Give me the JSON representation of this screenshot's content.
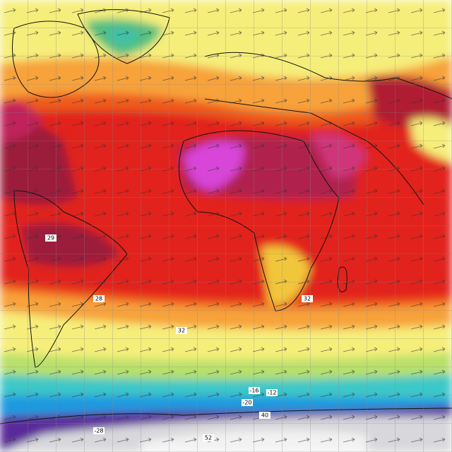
{
  "map": {
    "labels": [
      {
        "text": "32"
      },
      {
        "text": "28"
      },
      {
        "text": "29"
      },
      {
        "text": "-20"
      },
      {
        "text": "40"
      },
      {
        "text": "52"
      },
      {
        "text": "-28"
      },
      {
        "text": "32"
      },
      {
        "text": "-16"
      },
      {
        "text": "-12"
      }
    ]
  }
}
